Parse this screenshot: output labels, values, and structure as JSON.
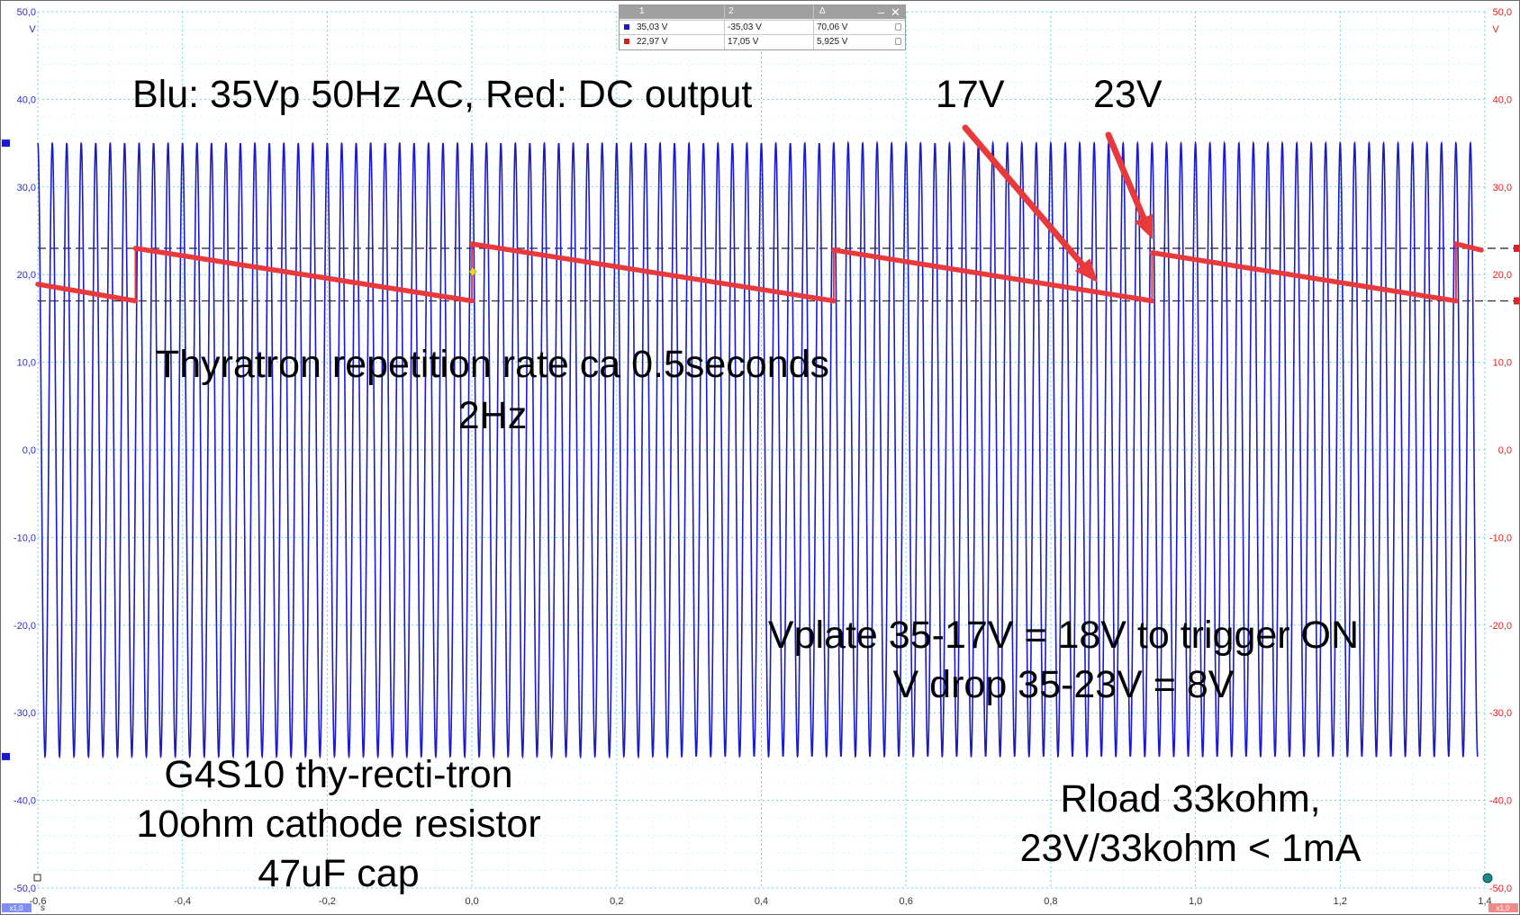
{
  "chart_data": {
    "type": "line",
    "xlabel": "s",
    "ylabel": "V",
    "xlim": [
      -0.6,
      1.4
    ],
    "ylim": [
      -50,
      50
    ],
    "x_ticks": [
      "-0,6",
      "-0,4",
      "-0,2",
      "0,0",
      "0,2",
      "0,4",
      "0,6",
      "0,8",
      "1,0",
      "1,2",
      "1,4"
    ],
    "y_ticks_left": [
      "50,0",
      "40,0",
      "30,0",
      "20,0",
      "10,0",
      "0,0",
      "-10,0",
      "-20,0",
      "-30,0",
      "-40,0",
      "-50,0"
    ],
    "y_ticks_right": [
      "50,0",
      "40,0",
      "30,0",
      "20,0",
      "10,0",
      "0,0",
      "-10,0",
      "-20,0",
      "-30,0",
      "-40,0",
      "-50,0"
    ],
    "left_unit": "V",
    "right_unit": "V",
    "grid": true,
    "cursors": [
      23,
      17
    ],
    "series": [
      {
        "color": "#1a1acc",
        "kind": "sine",
        "amplitude": 35,
        "frequency_hz": 50,
        "x_start": -0.6,
        "x_end": 1.39
      },
      {
        "color": "#e8393c",
        "kind": "sawtooth",
        "segments": [
          {
            "x": [
              -0.6,
              -0.465
            ],
            "y": [
              18.9,
              17.0
            ]
          },
          {
            "x": [
              -0.465,
              0.0
            ],
            "y": [
              23.0,
              17.0
            ]
          },
          {
            "x": [
              0.0,
              0.5
            ],
            "y": [
              23.5,
              17.0
            ]
          },
          {
            "x": [
              0.5,
              0.94
            ],
            "y": [
              22.8,
              17.0
            ]
          },
          {
            "x": [
              0.94,
              1.36
            ],
            "y": [
              22.5,
              17.0
            ]
          },
          {
            "x": [
              1.36,
              1.395
            ],
            "y": [
              23.5,
              22.8
            ]
          }
        ]
      }
    ]
  },
  "measurement": {
    "headers": [
      "1",
      "2",
      "Δ"
    ],
    "rows": [
      {
        "color": "#1a1acc",
        "v1": "35,03 V",
        "v2": "-35,03 V",
        "delta": "70,06 V"
      },
      {
        "color": "#cc2222",
        "v1": "22,97 V",
        "v2": "17,05 V",
        "delta": "5,925 V"
      }
    ],
    "minimize": "–",
    "close": "✕"
  },
  "annotations": {
    "signals": "Blu: 35Vp 50Hz AC,   Red: DC output",
    "v17": "17V",
    "v23": "23V",
    "rate_line1": "Thyratron repetition rate ca 0.5seconds",
    "rate_line2": "2Hz",
    "vplate_line1": "Vplate 35-17V = 18V to trigger ON",
    "vplate_line2": "V drop 35-23V = 8V",
    "tube_line1": "G4S10 thy-recti-tron",
    "tube_line2": "10ohm cathode resistor",
    "tube_line3": "47uF cap",
    "rload_line1": "Rload 33kohm,",
    "rload_line2": "23V/33kohm < 1mA"
  },
  "scale_badges": {
    "left": "x1,0",
    "right": "x1,0"
  },
  "colors": {
    "grid": "#6fd3d8",
    "axis_left": "#2b2bd6",
    "axis_right": "#e02222",
    "arrow": "#e8393c"
  }
}
